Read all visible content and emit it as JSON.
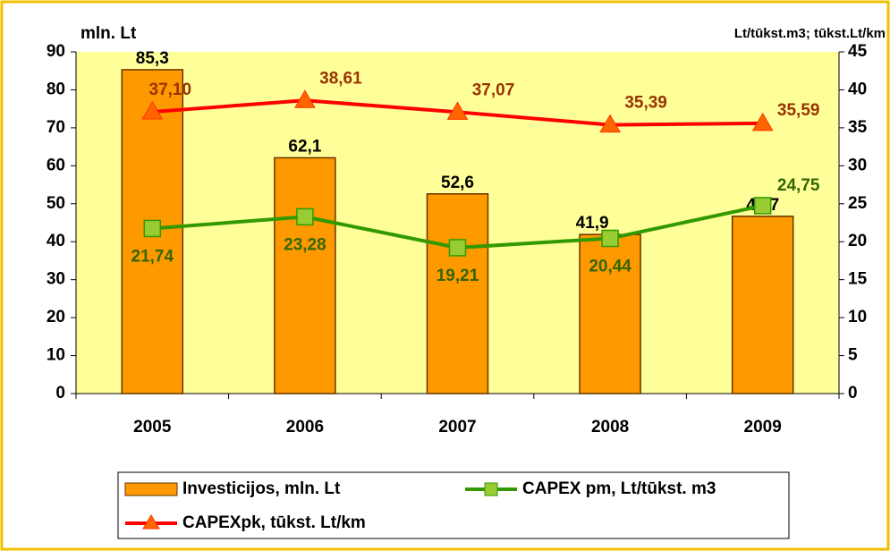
{
  "chart_data": {
    "type": "bar_line",
    "y_label": "mln. Lt",
    "y2_label": "Lt/tūkst.m3; tūkst.Lt/km",
    "categories": [
      "2005",
      "2006",
      "2007",
      "2008",
      "2009"
    ],
    "series": [
      {
        "name": "Investicijos, mln. Lt",
        "type": "bar",
        "color": "#ff9900",
        "values": [
          85.3,
          62.1,
          52.6,
          41.9,
          46.7
        ],
        "value_labels": [
          "85,3",
          "62,1",
          "52,6",
          "41,9",
          "46,7"
        ]
      },
      {
        "name": "CAPEX pm,  Lt/tūkst. m3",
        "type": "line",
        "axis": "y2",
        "color": "#339900",
        "marker_color": "#99cc33",
        "marker": "square",
        "values": [
          21.74,
          23.28,
          19.21,
          20.44,
          24.75
        ],
        "value_labels": [
          "21,74",
          "23,28",
          "19,21",
          "20,44",
          "24,75"
        ]
      },
      {
        "name": "CAPEXpk, tūkst. Lt/km",
        "type": "line",
        "axis": "y2",
        "color": "#ff0000",
        "marker_color": "#ff6600",
        "marker": "triangle",
        "values": [
          37.1,
          38.61,
          37.07,
          35.39,
          35.59
        ],
        "value_labels": [
          "37,10",
          "38,61",
          "37,07",
          "35,39",
          "35,59"
        ]
      }
    ],
    "ylim": [
      0,
      90
    ],
    "yticks": [
      0,
      10,
      20,
      30,
      40,
      50,
      60,
      70,
      80,
      90
    ],
    "y2lim": [
      0,
      45
    ],
    "y2ticks": [
      0,
      5,
      10,
      15,
      20,
      25,
      30,
      35,
      40,
      45
    ],
    "grid": false,
    "legend": "bottom"
  }
}
